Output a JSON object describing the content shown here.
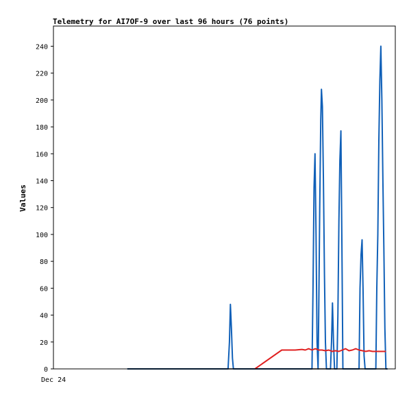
{
  "chart_data": {
    "type": "line",
    "title": "Telemetry for AI7OF-9 over last 96 hours (76 points)",
    "ylabel": "Values",
    "xlabel": "",
    "x_tick_labels": [
      "Dec 24"
    ],
    "ylim": [
      0,
      255
    ],
    "yticks": [
      0,
      20,
      40,
      60,
      80,
      100,
      120,
      140,
      160,
      180,
      200,
      220,
      240
    ],
    "xlim": [
      0,
      96
    ],
    "grid": false,
    "legend": "none",
    "series": [
      {
        "color": "#1060b8",
        "points": [
          [
            22,
            0
          ],
          [
            52,
            0
          ],
          [
            52.4,
            20
          ],
          [
            52.7,
            48
          ],
          [
            53.0,
            30
          ],
          [
            53.3,
            8
          ],
          [
            53.6,
            0
          ],
          [
            77.0,
            0
          ],
          [
            77.3,
            60
          ],
          [
            77.6,
            135
          ],
          [
            77.9,
            160
          ],
          [
            78.2,
            100
          ],
          [
            78.5,
            20
          ],
          [
            78.8,
            0
          ],
          [
            79.0,
            40
          ],
          [
            79.3,
            120
          ],
          [
            79.6,
            185
          ],
          [
            79.8,
            208
          ],
          [
            80.1,
            195
          ],
          [
            80.4,
            140
          ],
          [
            80.7,
            70
          ],
          [
            81.0,
            20
          ],
          [
            81.3,
            0
          ],
          [
            82.5,
            0
          ],
          [
            82.8,
            20
          ],
          [
            83.1,
            49
          ],
          [
            83.4,
            20
          ],
          [
            83.7,
            0
          ],
          [
            84.4,
            0
          ],
          [
            84.7,
            40
          ],
          [
            85.0,
            110
          ],
          [
            85.3,
            155
          ],
          [
            85.6,
            177
          ],
          [
            85.9,
            90
          ],
          [
            86.2,
            0
          ],
          [
            91.0,
            0
          ],
          [
            91.3,
            60
          ],
          [
            91.6,
            85
          ],
          [
            91.9,
            96
          ],
          [
            92.2,
            60
          ],
          [
            92.5,
            10
          ],
          [
            92.8,
            0
          ],
          [
            96.0,
            0
          ],
          [
            96.3,
            60
          ],
          [
            96.6,
            100
          ],
          [
            96.9,
            170
          ],
          [
            97.2,
            215
          ],
          [
            97.5,
            240
          ],
          [
            97.8,
            200
          ],
          [
            98.1,
            140
          ],
          [
            98.4,
            90
          ],
          [
            98.7,
            30
          ],
          [
            99.0,
            0
          ],
          [
            99.5,
            0
          ]
        ]
      },
      {
        "color": "#e02020",
        "points": [
          [
            60,
            0
          ],
          [
            68,
            14
          ],
          [
            70,
            14
          ],
          [
            72,
            14
          ],
          [
            74,
            14.5
          ],
          [
            75,
            14
          ],
          [
            76,
            15
          ],
          [
            77,
            14
          ],
          [
            78,
            15
          ],
          [
            79,
            14
          ],
          [
            80,
            14
          ],
          [
            81,
            13.5
          ],
          [
            82,
            14
          ],
          [
            83,
            13
          ],
          [
            84,
            13.5
          ],
          [
            85,
            13
          ],
          [
            86,
            14
          ],
          [
            87,
            15
          ],
          [
            88,
            13.5
          ],
          [
            89,
            14
          ],
          [
            90,
            15
          ],
          [
            91,
            14
          ],
          [
            92,
            13.5
          ],
          [
            93,
            13
          ],
          [
            94,
            13.5
          ],
          [
            95,
            13
          ],
          [
            96,
            13
          ],
          [
            97,
            13
          ],
          [
            98,
            13
          ],
          [
            99,
            13
          ]
        ]
      },
      {
        "color": "#000000",
        "points": [
          [
            22,
            0
          ],
          [
            99.5,
            0
          ]
        ]
      }
    ]
  }
}
